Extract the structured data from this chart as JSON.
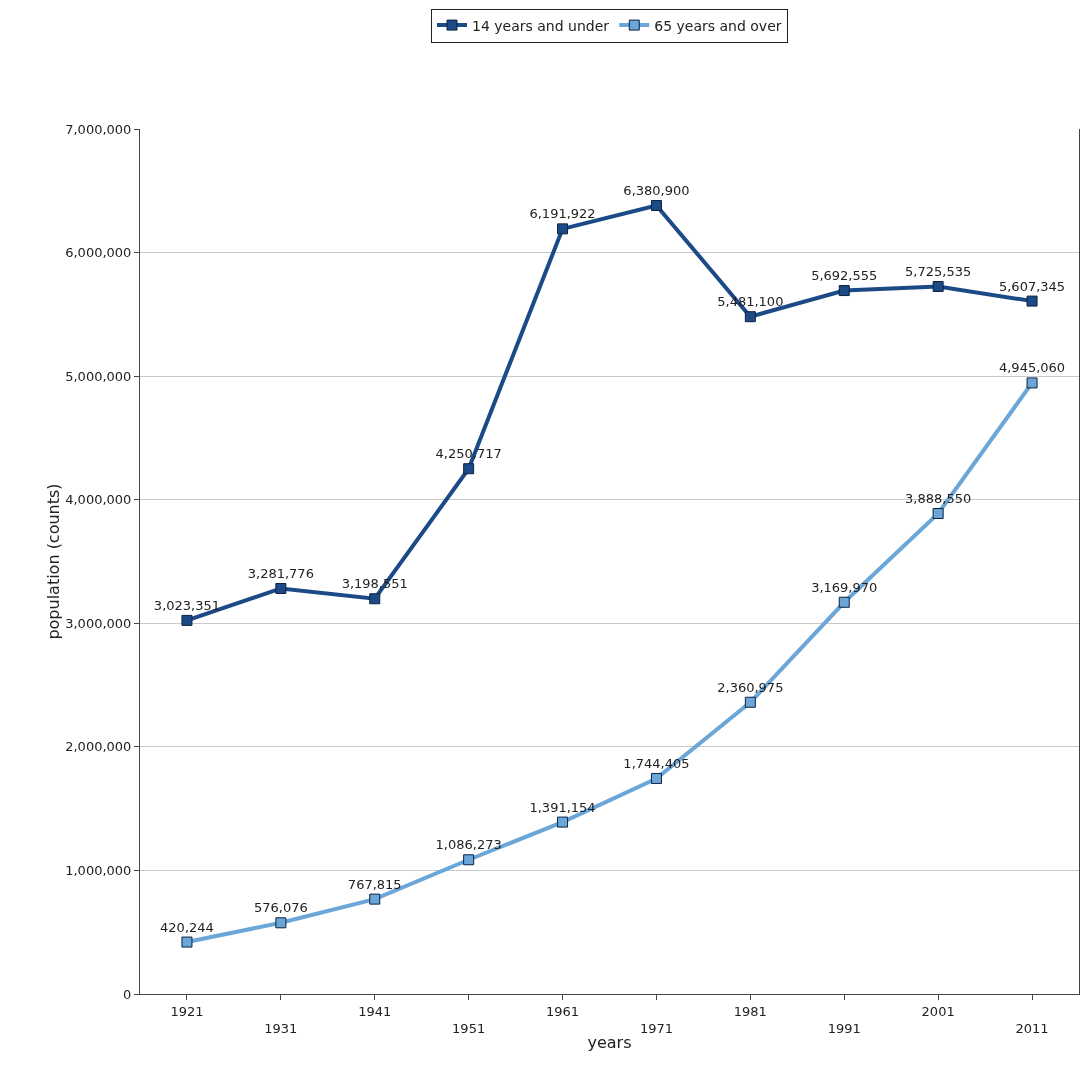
{
  "chart_data": {
    "type": "line",
    "xlabel": "years",
    "ylabel": "population (counts)",
    "categories": [
      "1921",
      "1931",
      "1941",
      "1951",
      "1961",
      "1971",
      "1981",
      "1991",
      "2001",
      "2011"
    ],
    "series": [
      {
        "name": "14 years and under",
        "color": "#1c4a86",
        "values": [
          3023351,
          3281776,
          3198551,
          4250717,
          6191922,
          6380900,
          5481100,
          5692555,
          5725535,
          5607345
        ],
        "value_labels": [
          "3,023,351",
          "3,281,776",
          "3,198,551",
          "4,250,717",
          "6,191,922",
          "6,380,900",
          "5,481,100",
          "5,692,555",
          "5,725,535",
          "5,607,345"
        ]
      },
      {
        "name": "65 years and over",
        "color": "#6aa6d8",
        "values": [
          420244,
          576076,
          767815,
          1086273,
          1391154,
          1744405,
          2360975,
          3169970,
          3888550,
          4945060
        ],
        "value_labels": [
          "420,244",
          "576,076",
          "767,815",
          "1,086,273",
          "1,391,154",
          "1,744,405",
          "2,360,975",
          "3,169,970",
          "3,888,550",
          "4,945,060"
        ]
      }
    ],
    "ylim": [
      0,
      7000000
    ],
    "yticks": [
      {
        "value": 0,
        "label": "0"
      },
      {
        "value": 1000000,
        "label": "1,000,000"
      },
      {
        "value": 2000000,
        "label": "2,000,000"
      },
      {
        "value": 3000000,
        "label": "3,000,000"
      },
      {
        "value": 4000000,
        "label": "4,000,000"
      },
      {
        "value": 5000000,
        "label": "5,000,000"
      },
      {
        "value": 6000000,
        "label": "6,000,000"
      },
      {
        "value": 7000000,
        "label": "7,000,000"
      }
    ],
    "grid": "y",
    "legend": "top",
    "marker": "square",
    "line_style": "solid"
  }
}
